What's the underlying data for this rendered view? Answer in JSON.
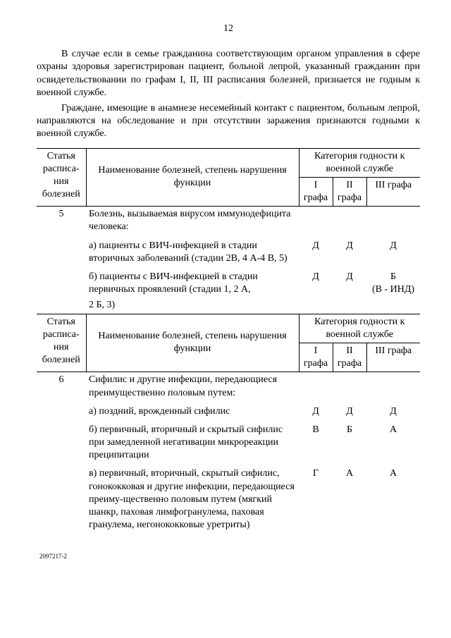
{
  "page_number": "12",
  "paragraphs": [
    "В случае если в семье гражданина соответствующим органом управления в сфере охраны здоровья зарегистрирован пациент, больной лепрой, указанный гражданин при освидетельствовании по графам I, II, III расписания болезней, признается не годным к военной службе.",
    "Граждане, имеющие в анамнезе несемейный контакт с пациентом, больным лепрой, направляются на обследование и при отсутствии заражения признаются годными к военной службе."
  ],
  "header": {
    "col_article": "Статья расписа-ния болезней",
    "col_name": "Наименование болезней, степень нарушения функции",
    "col_category": "Категория годности к военной службе",
    "g1": "I графа",
    "g2": "II графа",
    "g3": "III графа"
  },
  "article5": {
    "num": "5",
    "title": "Болезнь, вызываемая вирусом иммунодефицита человека:",
    "rowA": {
      "text": "а) пациенты с ВИЧ-инфекцией в стадии вторичных заболеваний (стадии 2В, 4 А-4 В, 5)",
      "g1": "Д",
      "g2": "Д",
      "g3": "Д"
    },
    "rowB": {
      "text": "б) пациенты с ВИЧ-инфекцией в стадии первичных проявлений (стадии 1, 2 А,",
      "text2": "2 Б, 3)",
      "g1": "Д",
      "g2": "Д",
      "g3": "Б",
      "g3_extra": "(В - ИНД)"
    }
  },
  "article6": {
    "num": "6",
    "title": "Сифилис и другие инфекции, передающиеся преимущественно половым путем:",
    "rowA": {
      "text": "а) поздний, врожденный сифилис",
      "g1": "Д",
      "g2": "Д",
      "g3": "Д"
    },
    "rowB": {
      "text": "б) первичный, вторичный и скрытый сифилис при замедленной негативации микрореакции преципитации",
      "g1": "В",
      "g2": "Б",
      "g3": "А"
    },
    "rowC": {
      "text": "в) первичный, вторичный, скрытый сифилис, гонококковая и другие инфекции, передающиеся преиму-щественно половым путем (мягкий шанкр, паховая лимфогранулема, паховая гранулема, негонококковые уретриты)",
      "g1": "Г",
      "g2": "А",
      "g3": "А"
    }
  },
  "footer_code": "2097217-2"
}
